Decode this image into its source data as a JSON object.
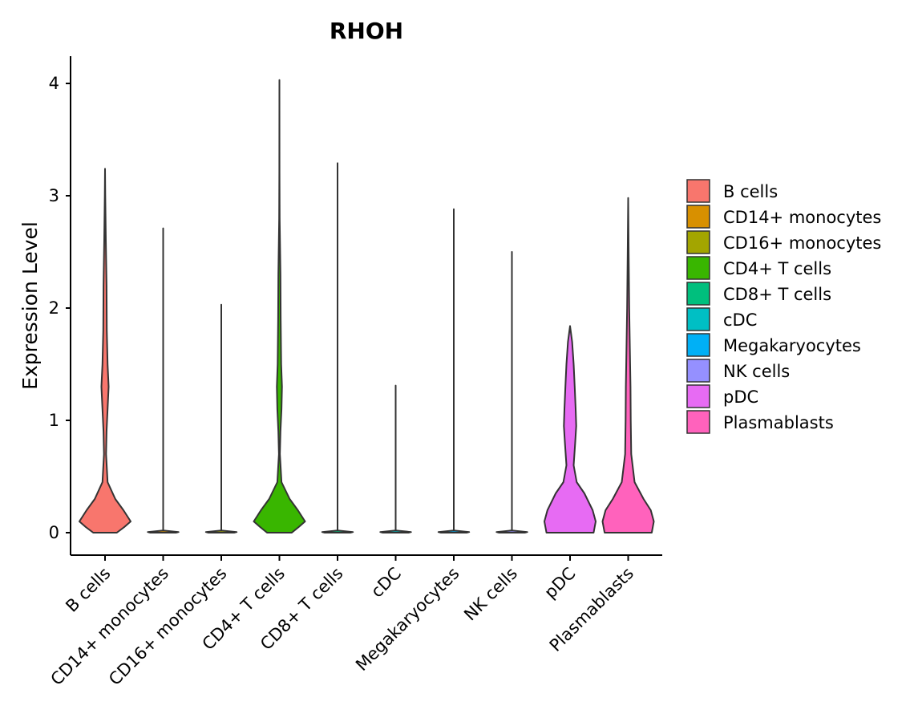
{
  "chart_data": {
    "type": "violin",
    "title": "RHOH",
    "xlabel": "",
    "ylabel": "Expression Level",
    "ylim": [
      0,
      4.2
    ],
    "yticks": [
      0,
      1,
      2,
      3,
      4
    ],
    "categories": [
      "B cells",
      "CD14+ monocytes",
      "CD16+ monocytes",
      "CD4+ T cells",
      "CD8+ T cells",
      "cDC",
      "Megakaryocytes",
      "NK cells",
      "pDC",
      "Plasmablasts"
    ],
    "colors": [
      "#F8766D",
      "#D89000",
      "#A3A500",
      "#39B600",
      "#00BF7D",
      "#00BFC4",
      "#00B0F6",
      "#9590FF",
      "#E76BF3",
      "#FF62BC"
    ],
    "max_values": [
      3.24,
      2.71,
      2.03,
      4.03,
      3.29,
      1.31,
      2.88,
      2.5,
      1.84,
      2.98
    ],
    "density_profiles": [
      [
        [
          0,
          0.46
        ],
        [
          0.05,
          0.75
        ],
        [
          0.1,
          1.0
        ],
        [
          0.2,
          0.72
        ],
        [
          0.3,
          0.4
        ],
        [
          0.45,
          0.1
        ],
        [
          0.7,
          0.04
        ],
        [
          0.9,
          0.06
        ],
        [
          1.1,
          0.1
        ],
        [
          1.3,
          0.14
        ],
        [
          1.5,
          0.1
        ],
        [
          1.8,
          0.07
        ],
        [
          2.2,
          0.06
        ],
        [
          2.6,
          0.03
        ],
        [
          3.0,
          0.01
        ],
        [
          3.24,
          0
        ]
      ],
      [
        [
          0,
          0.5
        ],
        [
          0.006,
          0.6
        ],
        [
          0.02,
          0
        ],
        [
          2.71,
          0
        ]
      ],
      [
        [
          0,
          0.5
        ],
        [
          0.006,
          0.6
        ],
        [
          0.02,
          0
        ],
        [
          2.03,
          0
        ]
      ],
      [
        [
          0,
          0.48
        ],
        [
          0.05,
          0.75
        ],
        [
          0.1,
          1.0
        ],
        [
          0.2,
          0.72
        ],
        [
          0.3,
          0.4
        ],
        [
          0.45,
          0.08
        ],
        [
          0.7,
          0.02
        ],
        [
          0.9,
          0.04
        ],
        [
          1.1,
          0.08
        ],
        [
          1.3,
          0.1
        ],
        [
          1.5,
          0.07
        ],
        [
          1.9,
          0.05
        ],
        [
          2.3,
          0.04
        ],
        [
          2.8,
          0.01
        ],
        [
          3.2,
          0.003
        ],
        [
          4.03,
          0
        ]
      ],
      [
        [
          0,
          0.5
        ],
        [
          0.006,
          0.6
        ],
        [
          0.02,
          0
        ],
        [
          3.29,
          0
        ]
      ],
      [
        [
          0,
          0.5
        ],
        [
          0.006,
          0.6
        ],
        [
          0.02,
          0
        ],
        [
          1.31,
          0
        ]
      ],
      [
        [
          0,
          0.5
        ],
        [
          0.006,
          0.6
        ],
        [
          0.02,
          0
        ],
        [
          2.88,
          0
        ]
      ],
      [
        [
          0,
          0.5
        ],
        [
          0.006,
          0.6
        ],
        [
          0.02,
          0
        ],
        [
          2.5,
          0
        ]
      ],
      [
        [
          0,
          0.92
        ],
        [
          0.1,
          1.0
        ],
        [
          0.2,
          0.88
        ],
        [
          0.35,
          0.56
        ],
        [
          0.45,
          0.26
        ],
        [
          0.6,
          0.14
        ],
        [
          0.8,
          0.2
        ],
        [
          0.95,
          0.24
        ],
        [
          1.1,
          0.22
        ],
        [
          1.3,
          0.18
        ],
        [
          1.5,
          0.14
        ],
        [
          1.7,
          0.08
        ],
        [
          1.84,
          0
        ]
      ],
      [
        [
          0,
          0.92
        ],
        [
          0.1,
          1.0
        ],
        [
          0.2,
          0.88
        ],
        [
          0.3,
          0.6
        ],
        [
          0.45,
          0.25
        ],
        [
          0.7,
          0.12
        ],
        [
          1.0,
          0.1
        ],
        [
          1.3,
          0.09
        ],
        [
          1.6,
          0.07
        ],
        [
          2.0,
          0.04
        ],
        [
          2.5,
          0.02
        ],
        [
          2.98,
          0
        ]
      ]
    ],
    "legend": {
      "position": "right",
      "entries": [
        "B cells",
        "CD14+ monocytes",
        "CD16+ monocytes",
        "CD4+ T cells",
        "CD8+ T cells",
        "cDC",
        "Megakaryocytes",
        "NK cells",
        "pDC",
        "Plasmablasts"
      ]
    }
  }
}
